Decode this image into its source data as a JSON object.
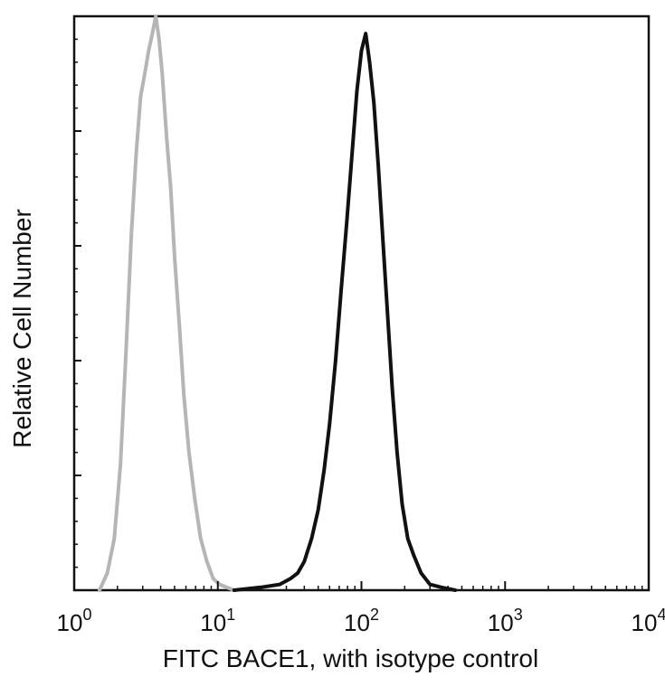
{
  "chart_data": {
    "type": "line",
    "xscale": "log",
    "xlim": [
      1,
      10000
    ],
    "ylim": [
      0,
      100
    ],
    "grid": false,
    "legend": "none",
    "xlabel": "FITC  BACE1,  with isotype control",
    "ylabel": "Relative Cell Number",
    "x_ticks": [
      {
        "value": 1,
        "base": "10",
        "exp": "0"
      },
      {
        "value": 10,
        "base": "10",
        "exp": "1"
      },
      {
        "value": 100,
        "base": "10",
        "exp": "2"
      },
      {
        "value": 1000,
        "base": "10",
        "exp": "3"
      },
      {
        "value": 10000,
        "base": "10",
        "exp": "4"
      }
    ],
    "series": [
      {
        "color": "#b5b5b5",
        "x": [
          1.5,
          1.7,
          1.9,
          2.1,
          2.3,
          2.5,
          2.7,
          2.9,
          3.1,
          3.3,
          3.5,
          3.7,
          3.9,
          4.1,
          4.4,
          4.7,
          5.0,
          5.4,
          5.8,
          6.3,
          6.9,
          7.6,
          8.4,
          9.3,
          10.3,
          11.5,
          13.0
        ],
        "y": [
          0,
          3,
          9,
          22,
          42,
          62,
          76,
          86,
          90,
          94,
          97,
          100,
          96,
          90,
          79,
          70,
          58,
          46,
          34,
          24,
          16,
          9,
          5,
          2,
          1,
          0.5,
          0
        ]
      },
      {
        "color": "#111111",
        "x": [
          13,
          20,
          27,
          32,
          36,
          40,
          45,
          50,
          55,
          60,
          66,
          72,
          79,
          86,
          93,
          100,
          107,
          114,
          122,
          131,
          141,
          152,
          164,
          177,
          192,
          210,
          232,
          260,
          300,
          360,
          450
        ],
        "y": [
          0,
          0.5,
          1,
          2,
          3,
          5,
          9,
          14,
          21,
          29,
          40,
          52,
          64,
          76,
          87,
          94,
          97,
          92,
          85,
          74,
          61,
          48,
          35,
          24,
          15,
          9,
          6,
          3,
          1,
          0.5,
          0
        ]
      }
    ]
  }
}
